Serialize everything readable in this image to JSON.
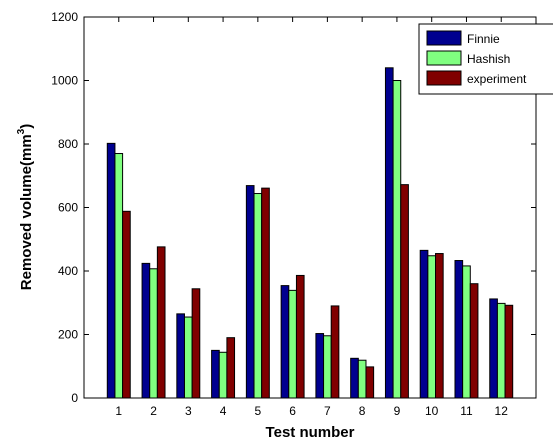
{
  "chart_data": {
    "type": "bar",
    "title": "",
    "xlabel": "Test number",
    "ylabel": "Removed volume(mm",
    "ylabel_superscript": "3",
    "ylabel_suffix": ")",
    "categories": [
      "1",
      "2",
      "3",
      "4",
      "5",
      "6",
      "7",
      "8",
      "9",
      "10",
      "11",
      "12"
    ],
    "xlim": [
      0,
      13
    ],
    "ylim": [
      0,
      1200
    ],
    "yticks": [
      0,
      200,
      400,
      600,
      800,
      1000,
      1200
    ],
    "grid": false,
    "legend_position": "top-right",
    "series": [
      {
        "name": "Finnie",
        "color": "#00008f",
        "values": [
          802,
          424,
          265,
          150,
          669,
          354,
          203,
          125,
          1040,
          465,
          433,
          312
        ]
      },
      {
        "name": "Hashish",
        "color": "#80ff80",
        "values": [
          770,
          407,
          255,
          144,
          644,
          339,
          196,
          119,
          1000,
          448,
          416,
          298
        ]
      },
      {
        "name": "experiment",
        "color": "#800000",
        "values": [
          588,
          476,
          344,
          190,
          661,
          386,
          290,
          98,
          672,
          455,
          360,
          292
        ]
      }
    ]
  }
}
